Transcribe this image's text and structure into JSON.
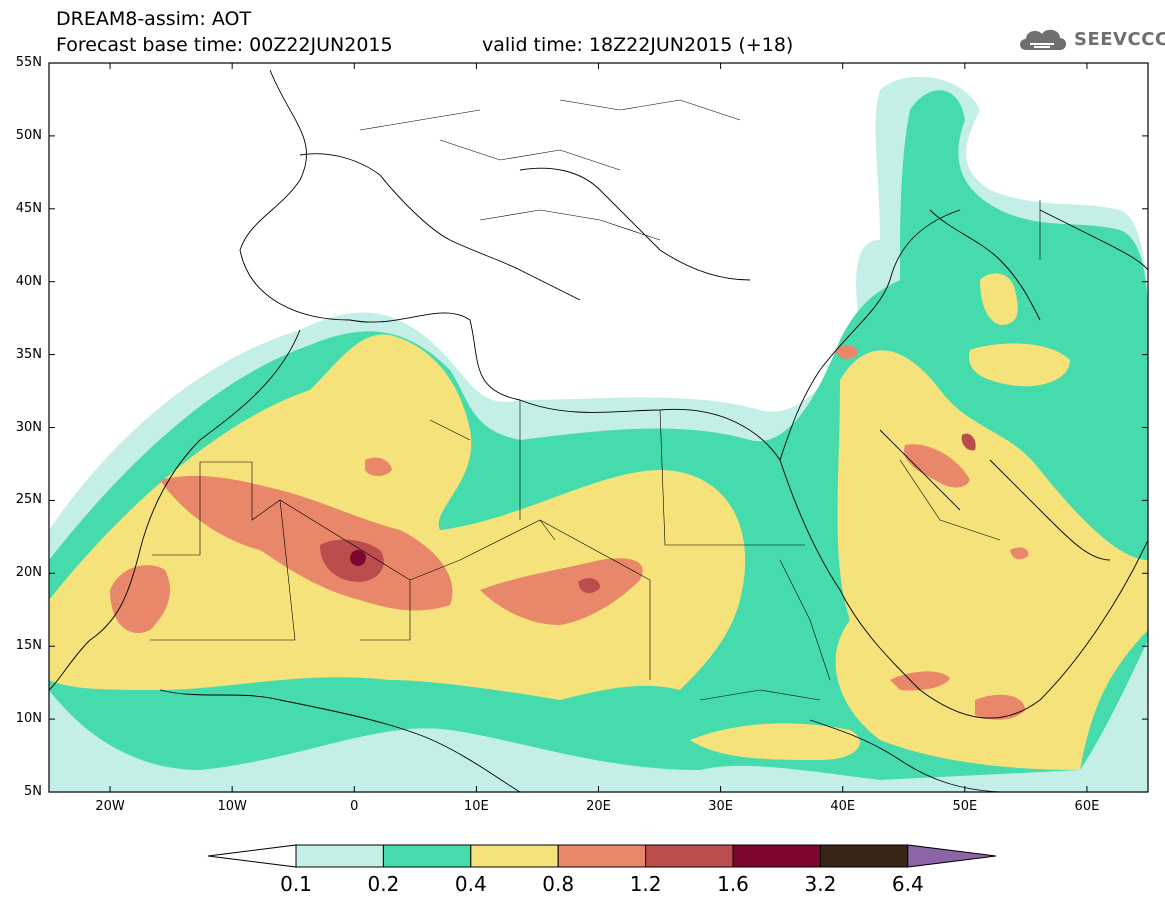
{
  "header": {
    "line1": "DREAM8-assim: AOT",
    "line2": "Forecast base time: 00Z22JUN2015",
    "valid": "valid time: 18Z22JUN2015 (+18)"
  },
  "logo": {
    "text": "SEEVCCC",
    "icon": "cloud-icon"
  },
  "map": {
    "lat_ticks": [
      "55N",
      "50N",
      "45N",
      "40N",
      "35N",
      "30N",
      "25N",
      "20N",
      "15N",
      "10N",
      "5N"
    ],
    "lon_ticks": [
      "20W",
      "10W",
      "0",
      "10E",
      "20E",
      "30E",
      "40E",
      "50E",
      "60E"
    ],
    "lon_range": [
      -25,
      65
    ],
    "lat_range": [
      5,
      55
    ]
  },
  "colorbar": {
    "labels": [
      "0.1",
      "0.2",
      "0.4",
      "0.8",
      "1.2",
      "1.6",
      "3.2",
      "6.4"
    ],
    "colors": [
      "#ffffff",
      "#c3efe7",
      "#46dbac",
      "#f6e27a",
      "#e9876a",
      "#bb4d4c",
      "#7e0530",
      "#382416",
      "#8d65a7"
    ]
  },
  "fields": {
    "c1": "#c3efe7",
    "c2": "#46dbac",
    "c3": "#f6e27a",
    "c4": "#e9876a",
    "c5": "#bb4d4c",
    "c6": "#7e0530"
  }
}
